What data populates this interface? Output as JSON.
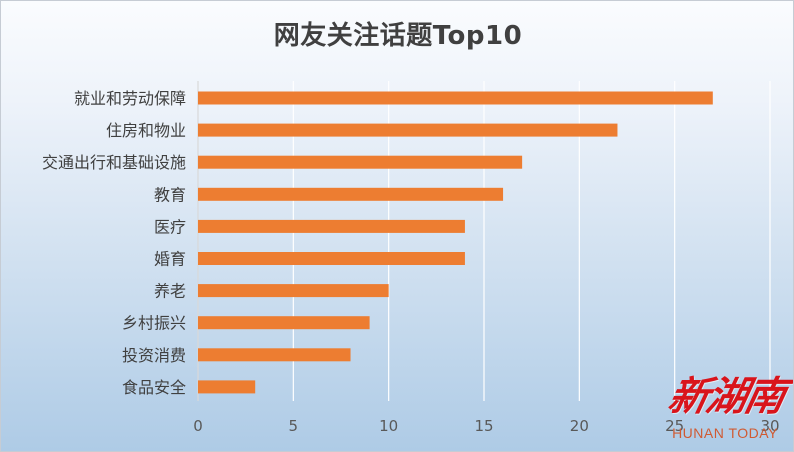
{
  "chart_data": {
    "type": "bar",
    "orientation": "horizontal",
    "title": "网友关注话题Top10",
    "categories": [
      "就业和劳动保障",
      "住房和物业",
      "交通出行和基础设施",
      "教育",
      "医疗",
      "婚育",
      "养老",
      "乡村振兴",
      "投资消费",
      "食品安全"
    ],
    "values": [
      27,
      22,
      17,
      16,
      14,
      14,
      10,
      9,
      8,
      3
    ],
    "xlim": [
      0,
      30
    ],
    "xticks": [
      0,
      5,
      10,
      15,
      20,
      25,
      30
    ],
    "grid": "vertical",
    "bar_color": "#ED7D31"
  },
  "watermark": {
    "logo_text": "新湖南",
    "sub_text": "HUNAN TODAY",
    "color": "#D9141B"
  }
}
